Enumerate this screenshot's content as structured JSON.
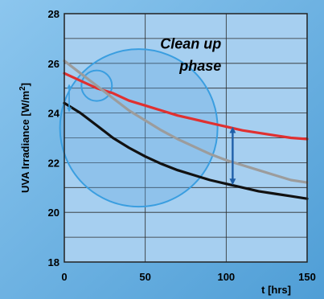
{
  "chart_data": {
    "type": "line",
    "xlabel": "t [hrs]",
    "ylabel": "UVA Irradiance [W/m",
    "ylabel_sup": "2",
    "ylabel_end": "]",
    "xlim": [
      0,
      150
    ],
    "ylim": [
      18,
      28
    ],
    "xticks": [
      "0",
      "50",
      "100",
      "150"
    ],
    "yticks": [
      "18",
      "20",
      "22",
      "24",
      "26",
      "28"
    ],
    "grid": true,
    "annotation": [
      "Clean up",
      "phase"
    ],
    "series": [
      {
        "color": "#e03030",
        "x": [
          0,
          10,
          20,
          30,
          40,
          50,
          60,
          70,
          80,
          90,
          100,
          110,
          120,
          130,
          140,
          150
        ],
        "y": [
          25.6,
          25.3,
          25.0,
          24.8,
          24.5,
          24.3,
          24.1,
          23.9,
          23.75,
          23.6,
          23.45,
          23.3,
          23.2,
          23.1,
          23.0,
          22.95
        ]
      },
      {
        "color": "#9c9c9c",
        "x": [
          0,
          10,
          20,
          30,
          40,
          50,
          60,
          70,
          80,
          90,
          100,
          110,
          120,
          130,
          140,
          150
        ],
        "y": [
          26.1,
          25.6,
          25.1,
          24.6,
          24.1,
          23.7,
          23.3,
          22.95,
          22.65,
          22.35,
          22.1,
          21.9,
          21.7,
          21.5,
          21.3,
          21.2
        ]
      },
      {
        "color": "#111111",
        "x": [
          0,
          10,
          20,
          30,
          40,
          50,
          60,
          70,
          80,
          90,
          100,
          110,
          120,
          130,
          140,
          150
        ],
        "y": [
          24.4,
          24.0,
          23.5,
          23.0,
          22.6,
          22.25,
          21.95,
          21.7,
          21.5,
          21.3,
          21.15,
          21.0,
          20.85,
          20.75,
          20.65,
          20.55
        ]
      }
    ],
    "markers": {
      "big_circle": {
        "cx": 46,
        "cy": 23.4
      },
      "small_circle": {
        "cx": 20,
        "cy": 25.1
      },
      "arrows": [
        {
          "x": 3,
          "y1": 25.2,
          "y2": 24.0
        },
        {
          "x": 104,
          "y1": 23.45,
          "y2": 21.1
        }
      ]
    },
    "colors": {
      "background": "#6aaee0",
      "plot_bg": "#9cc8ee",
      "circle": "#3a9ee0",
      "arrow": "#1f5fa8"
    }
  }
}
